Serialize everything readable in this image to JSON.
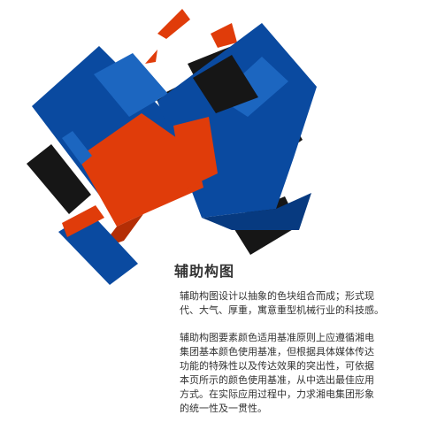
{
  "section": {
    "title": "辅助构图",
    "paragraph1_lines": [
      "辅助构图设计以抽象的色块组合而成；形式现",
      "代、大气、厚重，寓意重型机械行业的科技感。"
    ],
    "paragraph2_lines": [
      "辅助构图要素颜色适用基准原则上应遵循湘电",
      "集团基本颜色使用基准，但根据具体媒体传达",
      "功能的特殊性以及传达效果的突出性，可依据",
      "本页所示的颜色使用基准，从中选出最佳应用",
      "方式。在实际应用过程中，力求湘电集团形象",
      "的统一性及一贯性。"
    ]
  },
  "colors": {
    "blue": "#0a4aa0",
    "blue_light": "#1c66c0",
    "blue_dark": "#073a80",
    "orange": "#e03c0a",
    "orange_dark": "#b42e05",
    "black": "#161616",
    "text": "#333333"
  }
}
